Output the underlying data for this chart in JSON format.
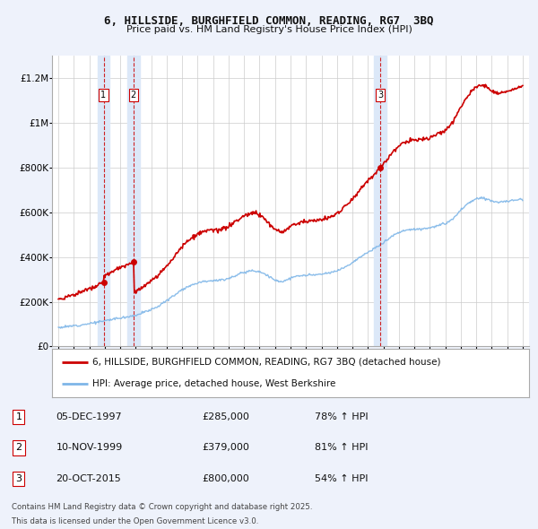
{
  "title_line1": "6, HILLSIDE, BURGHFIELD COMMON, READING, RG7  3BQ",
  "title_line2": "Price paid vs. HM Land Registry's House Price Index (HPI)",
  "background_color": "#eef2fb",
  "plot_bg_color": "#ffffff",
  "hpi_color": "#7eb6e8",
  "price_color": "#cc0000",
  "transaction_color": "#cc0000",
  "vspan_color": "#dce8f8",
  "ylim": [
    0,
    1300000
  ],
  "yticks": [
    0,
    200000,
    400000,
    600000,
    800000,
    1000000,
    1200000
  ],
  "ytick_labels": [
    "£0",
    "£200K",
    "£400K",
    "£600K",
    "£800K",
    "£1M",
    "£1.2M"
  ],
  "transactions": [
    {
      "num": 1,
      "date": "05-DEC-1997",
      "year": 1997.92,
      "price": 285000,
      "hpi_pct": "78% ↑ HPI"
    },
    {
      "num": 2,
      "date": "10-NOV-1999",
      "year": 1999.85,
      "price": 379000,
      "hpi_pct": "81% ↑ HPI"
    },
    {
      "num": 3,
      "date": "20-OCT-2015",
      "year": 2015.8,
      "price": 800000,
      "hpi_pct": "54% ↑ HPI"
    }
  ],
  "legend_house_label": "6, HILLSIDE, BURGHFIELD COMMON, READING, RG7 3BQ (detached house)",
  "legend_hpi_label": "HPI: Average price, detached house, West Berkshire",
  "footer_line1": "Contains HM Land Registry data © Crown copyright and database right 2025.",
  "footer_line2": "This data is licensed under the Open Government Licence v3.0."
}
